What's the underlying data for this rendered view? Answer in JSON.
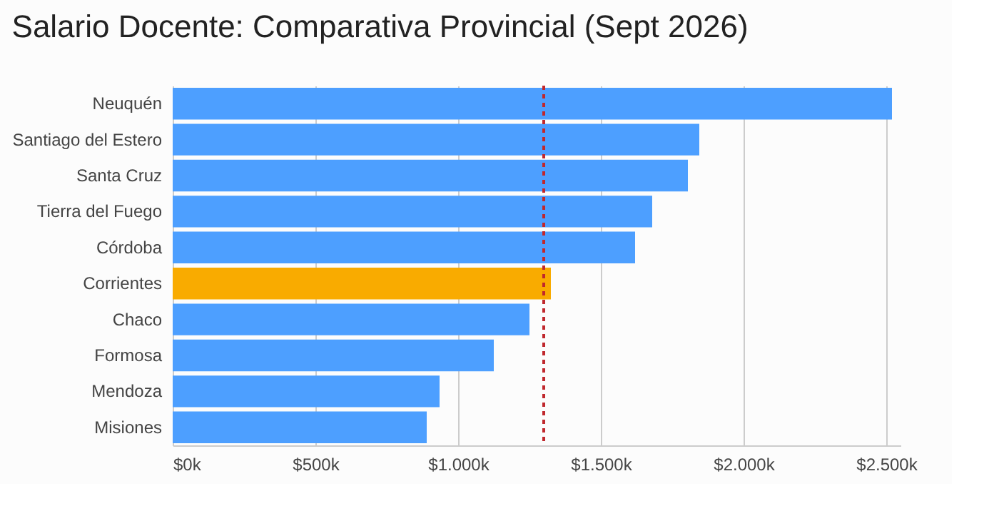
{
  "chart_data": {
    "type": "bar",
    "orientation": "horizontal",
    "title": "Salario Docente: Comparativa Provincial (Sept 2026)",
    "categories": [
      "Neuquén",
      "Santiago del Estero",
      "Santa Cruz",
      "Tierra del Fuego",
      "Córdoba",
      "Corrientes",
      "Chaco",
      "Formosa",
      "Mendoza",
      "Misiones"
    ],
    "values": [
      2520,
      1845,
      1805,
      1680,
      1620,
      1325,
      1250,
      1125,
      935,
      890
    ],
    "colors": [
      "#4d9fff",
      "#4d9fff",
      "#4d9fff",
      "#4d9fff",
      "#4d9fff",
      "#f9ab00",
      "#4d9fff",
      "#4d9fff",
      "#4d9fff",
      "#4d9fff"
    ],
    "xlim": [
      0,
      2550
    ],
    "xticks": [
      {
        "value": 0,
        "label": "$0k"
      },
      {
        "value": 500,
        "label": "$500k"
      },
      {
        "value": 1000,
        "label": "$1.000k"
      },
      {
        "value": 1500,
        "label": "$1.500k"
      },
      {
        "value": 2000,
        "label": "$2.000k"
      },
      {
        "value": 2500,
        "label": "$2.500k"
      }
    ],
    "ref_lines": [
      {
        "axis": "x",
        "value": 1300,
        "color": "#c0282d",
        "line_style": "dotted"
      }
    ],
    "grid": "x"
  }
}
